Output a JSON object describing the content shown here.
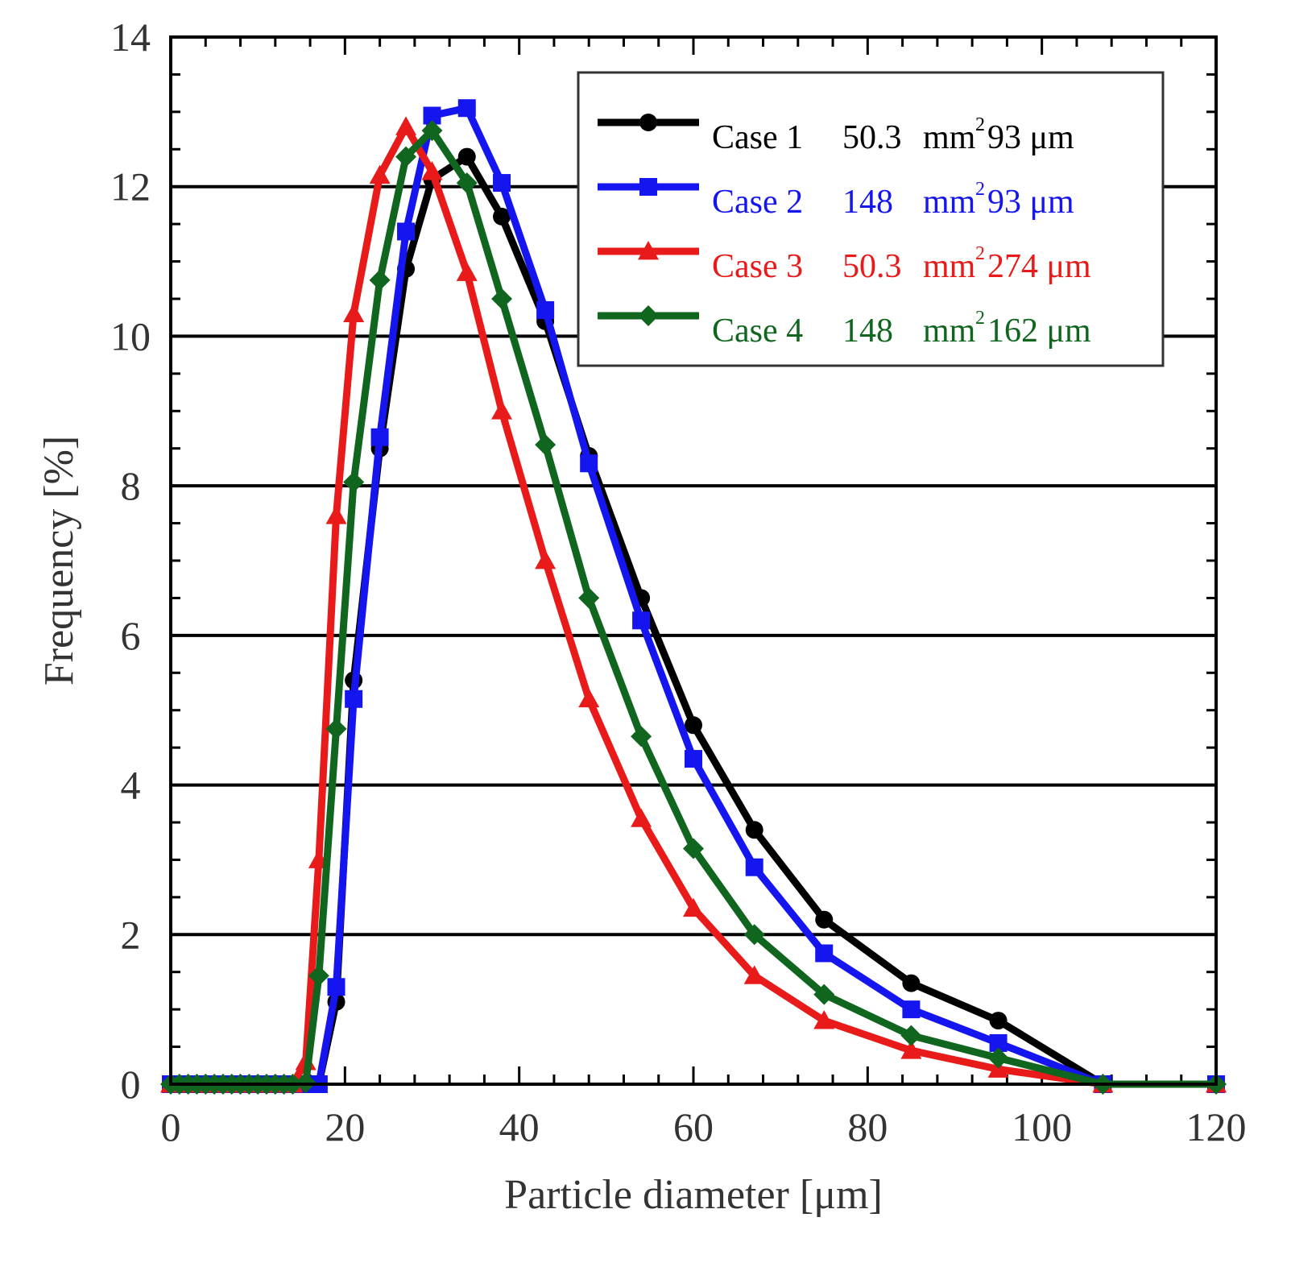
{
  "chart_data": {
    "type": "line",
    "title": "",
    "xlabel": "Particle diameter [μm]",
    "ylabel": "Frequency [%]",
    "xlim": [
      0,
      120
    ],
    "ylim": [
      0,
      14
    ],
    "xticks": [
      0,
      20,
      40,
      60,
      80,
      100,
      120
    ],
    "yticks": [
      0,
      2,
      4,
      6,
      8,
      10,
      12,
      14
    ],
    "grid": "horizontal",
    "legend_position": "top-right",
    "series": [
      {
        "name": "Case 1",
        "area": "50.3",
        "area_unit": "mm",
        "area_sup": "2",
        "size": "93 μm",
        "color": "#000000",
        "marker": "circle",
        "x": [
          0,
          1,
          2,
          3,
          4,
          5,
          6,
          7,
          8,
          9,
          10,
          11,
          12,
          13,
          14,
          15.5,
          17,
          19,
          21,
          24,
          27,
          30,
          34,
          38,
          43,
          48,
          54,
          60,
          67,
          75,
          85,
          95,
          107,
          120
        ],
        "y": [
          0,
          0,
          0,
          0,
          0,
          0,
          0,
          0,
          0,
          0,
          0,
          0,
          0,
          0,
          0,
          0,
          0,
          1.1,
          5.4,
          8.5,
          10.9,
          12.1,
          12.4,
          11.6,
          10.2,
          8.4,
          6.5,
          4.8,
          3.4,
          2.2,
          1.35,
          0.85,
          0,
          0
        ]
      },
      {
        "name": "Case 2",
        "area": "148",
        "area_unit": "mm",
        "area_sup": "2",
        "size": "93 μm",
        "color": "#1515f0",
        "marker": "square",
        "x": [
          0,
          1,
          2,
          3,
          4,
          5,
          6,
          7,
          8,
          9,
          10,
          11,
          12,
          13,
          14,
          15.5,
          17,
          19,
          21,
          24,
          27,
          30,
          34,
          38,
          43,
          48,
          54,
          60,
          67,
          75,
          85,
          95,
          107,
          120
        ],
        "y": [
          0,
          0,
          0,
          0,
          0,
          0,
          0,
          0,
          0,
          0,
          0,
          0,
          0,
          0,
          0,
          0,
          0,
          1.3,
          5.15,
          8.65,
          11.4,
          12.95,
          13.05,
          12.05,
          10.35,
          8.3,
          6.2,
          4.35,
          2.9,
          1.75,
          1.0,
          0.55,
          0,
          0
        ]
      },
      {
        "name": "Case 3",
        "area": "50.3",
        "area_unit": "mm",
        "area_sup": "2",
        "size": "274 μm",
        "color": "#e81a1a",
        "marker": "triangle",
        "x": [
          0,
          1,
          2,
          3,
          4,
          5,
          6,
          7,
          8,
          9,
          10,
          11,
          12,
          13,
          14,
          15.5,
          17,
          19,
          21,
          24,
          27,
          30,
          34,
          38,
          43,
          48,
          54,
          60,
          67,
          75,
          85,
          95,
          107,
          120
        ],
        "y": [
          0,
          0,
          0,
          0,
          0,
          0,
          0,
          0,
          0,
          0,
          0,
          0,
          0,
          0,
          0,
          0.3,
          3.0,
          7.6,
          10.3,
          12.15,
          12.8,
          12.2,
          10.85,
          9.0,
          7.0,
          5.15,
          3.55,
          2.35,
          1.45,
          0.85,
          0.45,
          0.2,
          0,
          0
        ]
      },
      {
        "name": "Case 4",
        "area": "148",
        "area_unit": "mm",
        "area_sup": "2",
        "size": "162 μm",
        "color": "#11661f",
        "marker": "diamond",
        "x": [
          0,
          1,
          2,
          3,
          4,
          5,
          6,
          7,
          8,
          9,
          10,
          11,
          12,
          13,
          14,
          15.5,
          17,
          19,
          21,
          24,
          27,
          30,
          34,
          38,
          43,
          48,
          54,
          60,
          67,
          75,
          85,
          95,
          107,
          120
        ],
        "y": [
          0,
          0,
          0,
          0,
          0,
          0,
          0,
          0,
          0,
          0,
          0,
          0,
          0,
          0,
          0,
          0.02,
          1.45,
          4.75,
          8.05,
          10.75,
          12.4,
          12.75,
          12.05,
          10.5,
          8.55,
          6.5,
          4.65,
          3.15,
          2.0,
          1.2,
          0.65,
          0.35,
          0,
          0
        ]
      }
    ]
  }
}
